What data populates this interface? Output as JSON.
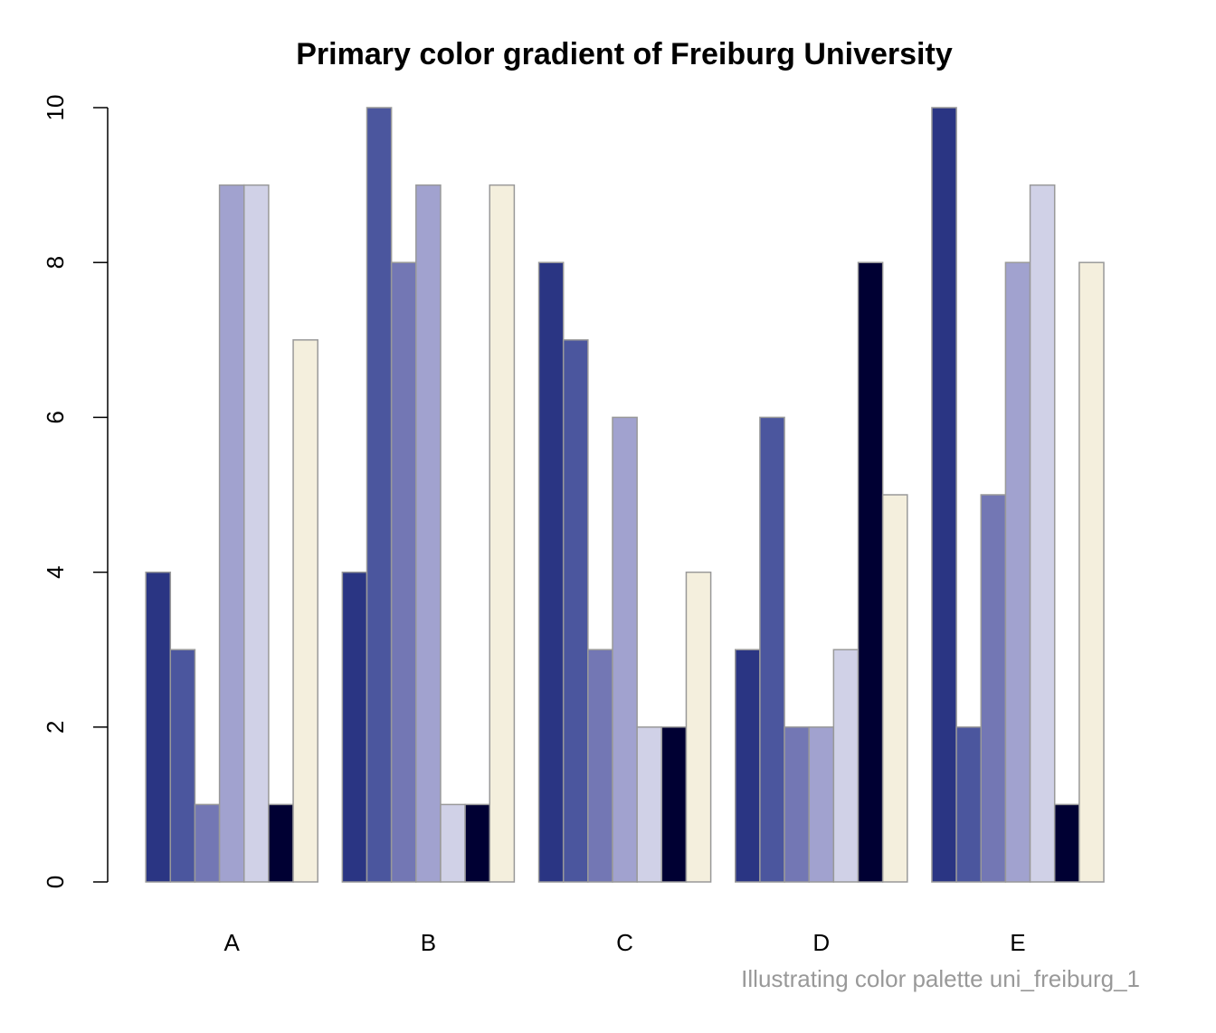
{
  "chart_data": {
    "type": "bar",
    "title": "Primary color gradient of Freiburg University",
    "caption": "Illustrating color palette uni_freiburg_1",
    "categories": [
      "A",
      "B",
      "C",
      "D",
      "E"
    ],
    "series": [
      {
        "color": "#2a3583",
        "values": [
          4,
          4,
          8,
          3,
          10
        ]
      },
      {
        "color": "#4b569e",
        "values": [
          3,
          10,
          7,
          6,
          2
        ]
      },
      {
        "color": "#7377b4",
        "values": [
          1,
          8,
          3,
          2,
          5
        ]
      },
      {
        "color": "#a1a2cf",
        "values": [
          9,
          9,
          6,
          2,
          8
        ]
      },
      {
        "color": "#d0d1e7",
        "values": [
          9,
          1,
          2,
          3,
          9
        ]
      },
      {
        "color": "#000033",
        "values": [
          1,
          1,
          2,
          8,
          1
        ]
      },
      {
        "color": "#f4efdd",
        "values": [
          7,
          9,
          4,
          5,
          8
        ]
      }
    ],
    "ylim": [
      0,
      10
    ],
    "yticks": [
      0,
      2,
      4,
      6,
      8,
      10
    ]
  }
}
